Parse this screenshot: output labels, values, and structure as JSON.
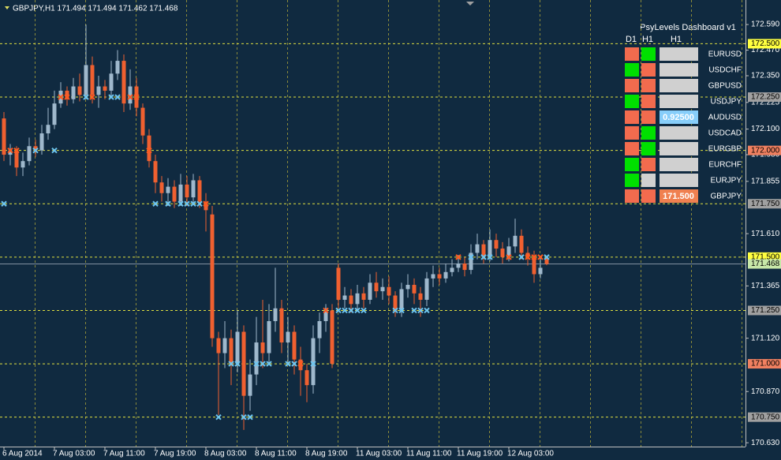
{
  "chart_data": {
    "type": "candlestick",
    "title": "GBPJPY,H1 171.494 171.494 171.462 171.468",
    "categories": [
      "6 Aug 2014",
      null,
      null,
      null,
      null,
      null,
      null,
      null,
      "7 Aug 03:00",
      null,
      null,
      null,
      null,
      null,
      null,
      null,
      "7 Aug 11:00",
      null,
      null,
      null,
      null,
      null,
      null,
      null,
      "7 Aug 19:00",
      null,
      null,
      null,
      null,
      null,
      null,
      null,
      "8 Aug 03:00",
      null,
      null,
      null,
      null,
      null,
      null,
      null,
      "8 Aug 11:00",
      null,
      null,
      null,
      null,
      null,
      null,
      null,
      "8 Aug 19:00",
      null,
      null,
      null,
      null,
      null,
      null,
      null,
      "11 Aug 03:00",
      null,
      null,
      null,
      null,
      null,
      null,
      null,
      "11 Aug 11:00",
      null,
      null,
      null,
      null,
      null,
      null,
      null,
      "11 Aug 19:00",
      null,
      null,
      null,
      null,
      null,
      null,
      null,
      "12 Aug 03:00",
      null,
      null,
      null,
      null,
      null,
      null
    ],
    "open": [
      172.15,
      171.98,
      172.0,
      171.92,
      171.95,
      172.02,
      172.0,
      172.08,
      172.12,
      172.22,
      172.28,
      172.24,
      172.3,
      172.26,
      172.4,
      172.26,
      172.3,
      172.28,
      172.36,
      172.42,
      172.22,
      172.3,
      172.2,
      172.07,
      171.95,
      171.85,
      171.8,
      171.83,
      171.76,
      171.84,
      171.78,
      171.86,
      171.76,
      171.7,
      171.12,
      171.05,
      171.12,
      171.0,
      171.15,
      170.85,
      170.95,
      171.1,
      171.05,
      171.2,
      171.26,
      171.1,
      171.15,
      171.02,
      170.97,
      170.9,
      171.12,
      171.2,
      171.25,
      171.45,
      171.3,
      171.32,
      171.28,
      171.33,
      171.3,
      171.38,
      171.34,
      171.36,
      171.32,
      171.25,
      171.35,
      171.37,
      171.33,
      171.3,
      171.4,
      171.42,
      171.4,
      171.43,
      171.45,
      171.47,
      171.44,
      171.52,
      171.56,
      171.5,
      171.58,
      171.54,
      171.5,
      171.55,
      171.6,
      171.52,
      171.5,
      171.42,
      171.494
    ],
    "high": [
      172.18,
      172.03,
      172.02,
      171.99,
      172.06,
      172.05,
      172.12,
      172.2,
      172.28,
      172.32,
      172.3,
      172.34,
      172.36,
      172.59,
      172.44,
      172.35,
      172.33,
      172.42,
      172.47,
      172.45,
      172.38,
      172.34,
      172.22,
      172.1,
      171.98,
      171.88,
      171.87,
      171.86,
      171.89,
      171.88,
      171.89,
      171.88,
      171.8,
      171.74,
      171.15,
      171.2,
      171.16,
      171.25,
      171.18,
      171.02,
      171.22,
      171.3,
      171.28,
      171.45,
      171.3,
      171.22,
      171.18,
      171.08,
      171.0,
      171.18,
      171.24,
      171.28,
      171.28,
      171.47,
      171.36,
      171.35,
      171.37,
      171.36,
      171.42,
      171.43,
      171.4,
      171.41,
      171.34,
      171.38,
      171.42,
      171.4,
      171.36,
      171.43,
      171.46,
      171.45,
      171.47,
      171.49,
      171.51,
      171.5,
      171.56,
      171.61,
      171.58,
      171.63,
      171.61,
      171.57,
      171.59,
      171.68,
      171.63,
      171.55,
      171.53,
      171.5,
      171.494
    ],
    "low": [
      171.95,
      171.93,
      171.88,
      171.88,
      171.93,
      171.97,
      171.98,
      172.05,
      172.1,
      172.2,
      172.21,
      172.22,
      172.23,
      172.24,
      172.22,
      172.2,
      172.24,
      172.25,
      172.33,
      172.18,
      172.19,
      172.16,
      172.03,
      171.92,
      171.8,
      171.76,
      171.74,
      171.73,
      171.74,
      171.74,
      171.75,
      171.73,
      171.62,
      171.08,
      170.76,
      170.98,
      170.9,
      170.96,
      170.69,
      170.78,
      170.9,
      170.98,
      171.0,
      171.15,
      171.05,
      171.0,
      170.95,
      170.85,
      170.82,
      170.86,
      171.05,
      171.15,
      170.98,
      171.26,
      171.26,
      171.24,
      171.25,
      171.26,
      171.28,
      171.31,
      171.3,
      171.28,
      171.22,
      171.22,
      171.31,
      171.28,
      171.22,
      171.27,
      171.36,
      171.37,
      171.38,
      171.41,
      171.43,
      171.41,
      171.42,
      171.49,
      171.47,
      171.48,
      171.5,
      171.47,
      171.48,
      171.52,
      171.49,
      171.46,
      171.38,
      171.4,
      171.462
    ],
    "close": [
      171.98,
      172.0,
      171.92,
      171.95,
      172.02,
      172.0,
      172.08,
      172.12,
      172.22,
      172.28,
      172.24,
      172.3,
      172.26,
      172.4,
      172.26,
      172.3,
      172.28,
      172.36,
      172.42,
      172.22,
      172.3,
      172.2,
      172.07,
      171.95,
      171.85,
      171.8,
      171.83,
      171.76,
      171.84,
      171.78,
      171.86,
      171.76,
      171.72,
      171.12,
      171.05,
      171.12,
      171.0,
      171.15,
      170.85,
      170.95,
      171.1,
      171.05,
      171.2,
      171.26,
      171.1,
      171.15,
      171.02,
      170.97,
      170.9,
      171.12,
      171.2,
      171.26,
      171.0,
      171.3,
      171.32,
      171.28,
      171.33,
      171.3,
      171.38,
      171.34,
      171.36,
      171.32,
      171.25,
      171.35,
      171.37,
      171.33,
      171.3,
      171.4,
      171.42,
      171.4,
      171.43,
      171.45,
      171.47,
      171.44,
      171.52,
      171.56,
      171.5,
      171.58,
      171.54,
      171.5,
      171.55,
      171.6,
      171.52,
      171.5,
      171.42,
      171.45,
      171.468
    ],
    "up_color": "#9fb8cc",
    "down_color": "#f06030",
    "ylim": [
      170.612,
      172.705
    ],
    "yticks": [
      {
        "value": 172.59,
        "label": "172.590"
      },
      {
        "value": 172.47,
        "label": "172.470"
      },
      {
        "value": 172.35,
        "label": "172.350"
      },
      {
        "value": 172.225,
        "label": "172.225"
      },
      {
        "value": 172.1,
        "label": "172.100"
      },
      {
        "value": 171.98,
        "label": "171.980"
      },
      {
        "value": 171.855,
        "label": "171.855"
      },
      {
        "value": 171.61,
        "label": "171.610"
      },
      {
        "value": 171.365,
        "label": "171.365"
      },
      {
        "value": 171.12,
        "label": "171.120"
      },
      {
        "value": 170.87,
        "label": "170.870"
      },
      {
        "value": 170.63,
        "label": "170.630"
      }
    ],
    "levels": [
      {
        "value": 172.5,
        "label": "172.500",
        "color": "#ffff40"
      },
      {
        "value": 172.25,
        "label": "172.250",
        "color": "#a0a0a0"
      },
      {
        "value": 172.0,
        "label": "172.000",
        "color": "#f08060"
      },
      {
        "value": 171.75,
        "label": "171.750",
        "color": "#a0a0a0"
      },
      {
        "value": 171.5,
        "label": "171.500",
        "color": "#ffff40"
      },
      {
        "value": 171.25,
        "label": "171.250",
        "color": "#a0a0a0"
      },
      {
        "value": 171.0,
        "label": "171.000",
        "color": "#f08060"
      },
      {
        "value": 170.75,
        "label": "170.750",
        "color": "#a0a0a0"
      }
    ],
    "bid_line": {
      "value": 171.468,
      "color": "#c8e8a8"
    },
    "cross_marks": [
      {
        "color": "#6ec6f0",
        "x": [
          0,
          5,
          8,
          13,
          17,
          18,
          24,
          26,
          28,
          29,
          30,
          31,
          34,
          36,
          37,
          38,
          39,
          40,
          41,
          42,
          45,
          46,
          49,
          53,
          54,
          55,
          56,
          57,
          62,
          63,
          65,
          66,
          67,
          74,
          76,
          77,
          82,
          86
        ],
        "y": [
          171.75,
          172.0,
          172.0,
          172.25,
          172.25,
          172.25,
          171.75,
          171.75,
          171.75,
          171.75,
          171.75,
          171.75,
          170.75,
          171.0,
          171.0,
          170.75,
          170.75,
          171.0,
          171.0,
          171.0,
          171.0,
          171.0,
          171.0,
          171.25,
          171.25,
          171.25,
          171.25,
          171.25,
          171.25,
          171.25,
          171.25,
          171.25,
          171.25,
          171.5,
          171.5,
          171.5,
          171.5,
          171.5
        ]
      },
      {
        "color": "#ff5a1f",
        "x": [
          1,
          2,
          9,
          10,
          14,
          20,
          21,
          23,
          32,
          47,
          51,
          72,
          80,
          83,
          84,
          85
        ],
        "y": [
          172.0,
          172.0,
          172.25,
          172.25,
          172.25,
          172.25,
          172.25,
          172.0,
          171.75,
          171.0,
          171.25,
          171.5,
          171.5,
          171.5,
          171.5,
          171.5
        ]
      }
    ]
  },
  "dashboard": {
    "title": "PsyLevels Dashboard v1",
    "columns": [
      "D1",
      "H1",
      "H1"
    ],
    "rows": [
      {
        "pair": "EURUSD",
        "d1": "#f26b4e",
        "h1": "#00e000"
      },
      {
        "pair": "USDCHF",
        "d1": "#00e000",
        "h1": "#f26b4e"
      },
      {
        "pair": "GBPUSD",
        "d1": "#f26b4e",
        "h1": "#f26b4e"
      },
      {
        "pair": "USDJPY",
        "d1": "#00e000",
        "h1": "#f26b4e"
      },
      {
        "pair": "AUDUSD",
        "d1": "#f26b4e",
        "h1": "#f26b4e",
        "value": "0.92500",
        "value_color": "#87cefa"
      },
      {
        "pair": "USDCAD",
        "d1": "#f26b4e",
        "h1": "#00e000"
      },
      {
        "pair": "EURGBP",
        "d1": "#f26b4e",
        "h1": "#00e000"
      },
      {
        "pair": "EURCHF",
        "d1": "#00e000",
        "h1": "#f26b4e"
      },
      {
        "pair": "EURJPY",
        "d1": "#00e000",
        "h1": "#d0d0d0"
      },
      {
        "pair": "GBPJPY",
        "d1": "#f26b4e",
        "h1": "#f26b4e",
        "value": "171.500",
        "value_color": "#f08050"
      }
    ]
  }
}
